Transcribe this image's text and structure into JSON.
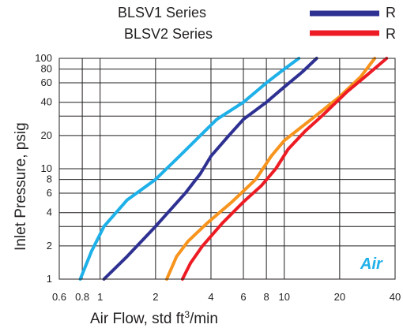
{
  "chart_data": {
    "type": "line",
    "x_scale": "log",
    "y_scale": "log",
    "xlim": [
      0.6,
      40
    ],
    "ylim": [
      1,
      100
    ],
    "xlabel": "Air Flow, std ft",
    "xlabel_sup": "3",
    "xlabel_tail": "/min",
    "ylabel": "Inlet Pressure, psig",
    "x_ticks": [
      {
        "v": 0.6,
        "t": "0.6"
      },
      {
        "v": 0.8,
        "t": "0.8"
      },
      {
        "v": 1,
        "t": "1"
      },
      {
        "v": 2,
        "t": "2"
      },
      {
        "v": 4,
        "t": "4"
      },
      {
        "v": 6,
        "t": "6"
      },
      {
        "v": 8,
        "t": "8"
      },
      {
        "v": 10,
        "t": "10"
      },
      {
        "v": 20,
        "t": "20"
      },
      {
        "v": 40,
        "t": "40"
      }
    ],
    "y_ticks": [
      {
        "v": 1,
        "t": "1"
      },
      {
        "v": 2,
        "t": "2"
      },
      {
        "v": 4,
        "t": "4"
      },
      {
        "v": 6,
        "t": "6"
      },
      {
        "v": 8,
        "t": "8"
      },
      {
        "v": 10,
        "t": "10"
      },
      {
        "v": 20,
        "t": "20"
      },
      {
        "v": 40,
        "t": "40"
      },
      {
        "v": 60,
        "t": "60"
      },
      {
        "v": 80,
        "t": "80"
      },
      {
        "v": 100,
        "t": "100"
      }
    ],
    "x_grid": [
      0.6,
      0.8,
      1,
      2,
      4,
      6,
      8,
      10,
      20,
      40
    ],
    "y_grid": [
      1,
      2,
      3,
      4,
      6,
      8,
      10,
      20,
      30,
      40,
      60,
      80,
      100
    ],
    "grid": true,
    "annotation": "Air",
    "legend": {
      "placement": "top",
      "groups": [
        "BLSV1 Series",
        "BLSV2 Series"
      ],
      "entries": [
        {
          "label": "R",
          "color": "#2e3192"
        },
        {
          "label": "R",
          "color": "#ed1c24"
        }
      ]
    },
    "series": [
      {
        "color": "#1eb0e8",
        "points": [
          [
            0.78,
            1
          ],
          [
            0.9,
            1.8
          ],
          [
            1.05,
            3
          ],
          [
            1.4,
            5.2
          ],
          [
            2,
            8
          ],
          [
            2.7,
            13
          ],
          [
            3.5,
            20
          ],
          [
            4.3,
            28
          ],
          [
            6,
            40
          ],
          [
            8,
            60
          ],
          [
            10,
            80
          ],
          [
            12,
            100
          ]
        ]
      },
      {
        "color": "#2e3192",
        "points": [
          [
            1.05,
            1
          ],
          [
            1.4,
            1.6
          ],
          [
            2,
            3
          ],
          [
            2.9,
            6
          ],
          [
            3.5,
            9
          ],
          [
            4,
            13
          ],
          [
            5,
            20
          ],
          [
            6,
            28
          ],
          [
            8,
            40
          ],
          [
            10,
            55
          ],
          [
            12.5,
            75
          ],
          [
            15,
            100
          ]
        ]
      },
      {
        "color": "#f7941d",
        "points": [
          [
            2.3,
            1
          ],
          [
            2.6,
            1.6
          ],
          [
            3,
            2.2
          ],
          [
            3.8,
            3.2
          ],
          [
            5.2,
            5
          ],
          [
            7,
            8
          ],
          [
            8.5,
            13
          ],
          [
            10,
            18
          ],
          [
            14,
            28
          ],
          [
            20,
            45
          ],
          [
            26,
            68
          ],
          [
            31,
            100
          ]
        ]
      },
      {
        "color": "#ed1c24",
        "points": [
          [
            2.8,
            1
          ],
          [
            3.1,
            1.4
          ],
          [
            3.6,
            2
          ],
          [
            4.6,
            3.2
          ],
          [
            6,
            5
          ],
          [
            7.5,
            7
          ],
          [
            9,
            10
          ],
          [
            10.5,
            15
          ],
          [
            13,
            22
          ],
          [
            16,
            30
          ],
          [
            22,
            50
          ],
          [
            28,
            70
          ],
          [
            36,
            100
          ]
        ]
      }
    ]
  }
}
